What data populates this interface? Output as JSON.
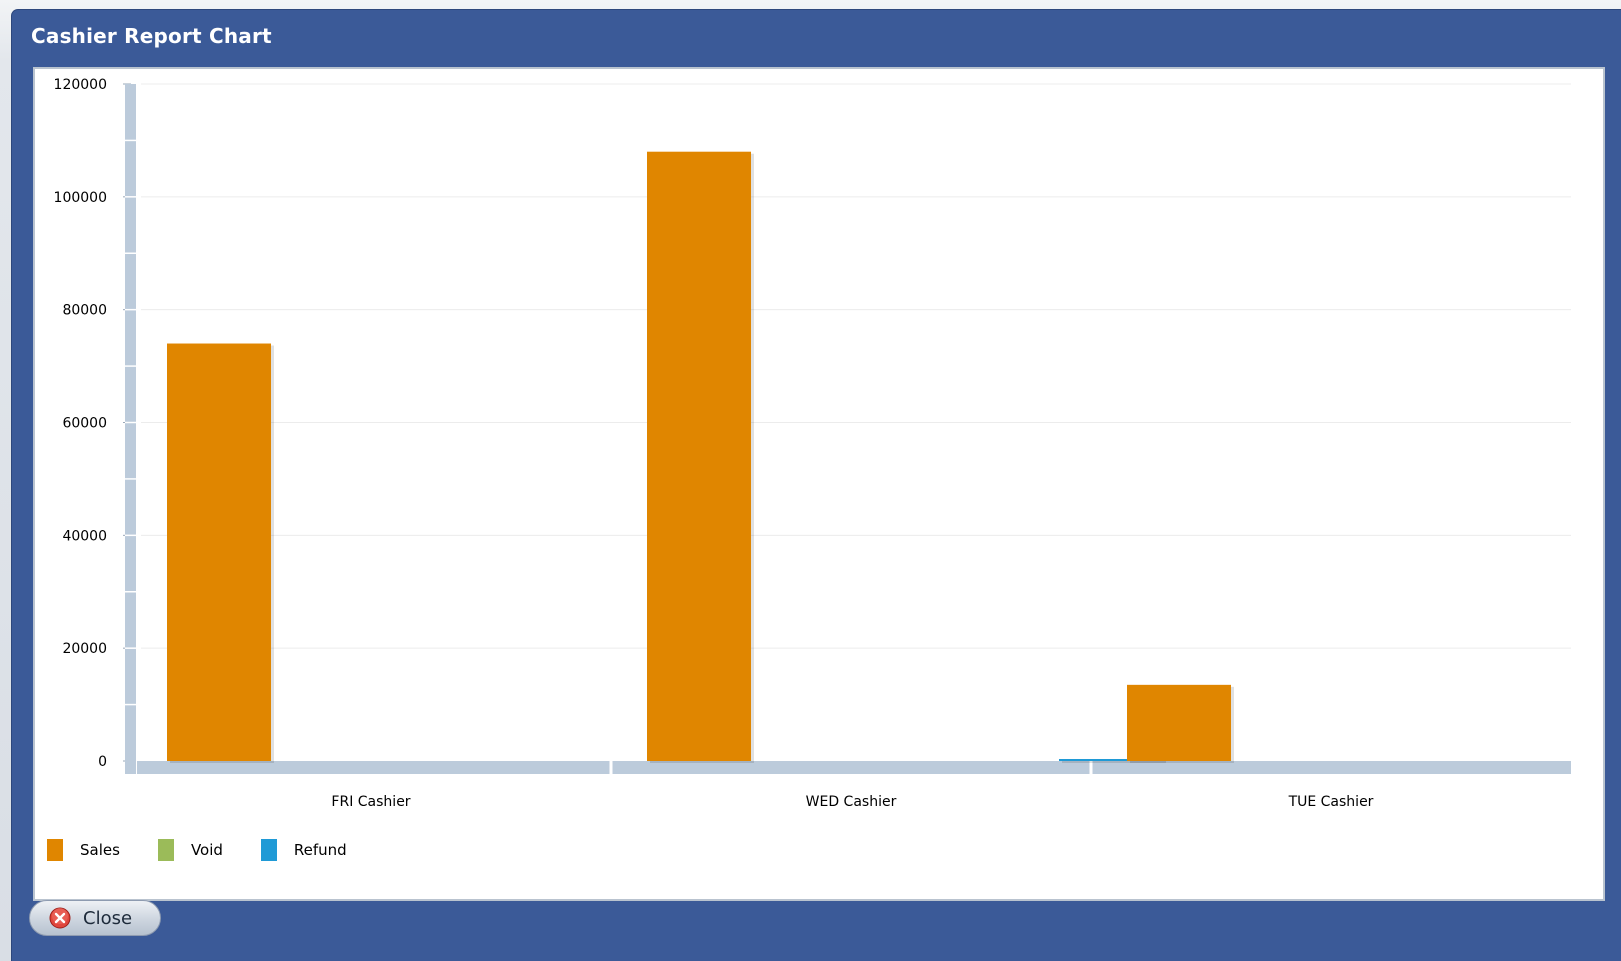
{
  "window": {
    "title": "Cashier Report Chart"
  },
  "footer": {
    "close_label": "Close"
  },
  "colors": {
    "titlebar": "#3b5a98",
    "sales": "#e08600",
    "void": "#9bbb59",
    "refund": "#1f9ad6",
    "axis": "#bccbdb"
  },
  "legend": [
    {
      "label": "Sales",
      "color": "#e08600"
    },
    {
      "label": "Void",
      "color": "#9bbb59"
    },
    {
      "label": "Refund",
      "color": "#1f9ad6"
    }
  ],
  "chart_data": {
    "type": "bar",
    "title": "",
    "xlabel": "",
    "ylabel": "",
    "categories": [
      "FRI Cashier",
      "WED Cashier",
      "TUE Cashier"
    ],
    "ylim": [
      0,
      120000
    ],
    "yticks": [
      0,
      20000,
      40000,
      60000,
      80000,
      100000,
      120000
    ],
    "grid": true,
    "legend_position": "bottom-left",
    "series": [
      {
        "name": "Sales",
        "values": [
          74000,
          108000,
          13500
        ]
      },
      {
        "name": "Void",
        "values": [
          0,
          0,
          0
        ]
      },
      {
        "name": "Refund",
        "values": [
          0,
          300,
          0
        ]
      }
    ]
  }
}
